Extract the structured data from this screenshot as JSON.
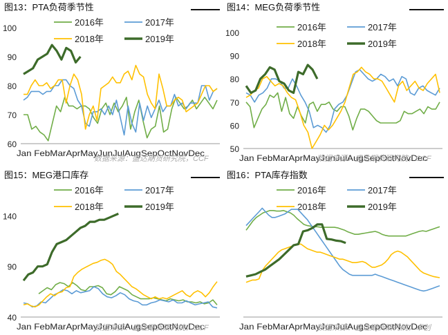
{
  "colors": {
    "s2016": "#70ad47",
    "s2017": "#5b9bd5",
    "s2018": "#ffc000",
    "s2019": "#3d6b2a"
  },
  "charts": [
    {
      "id": "p13",
      "panel_title": "图13：PTA负荷季节性",
      "source": "数据来源：盛达期货研究院，CCF",
      "chart_data": {
        "type": "line",
        "x_ticks": [
          "Jan",
          "Feb",
          "Mar",
          "Apr",
          "May",
          "Jun",
          "Jul",
          "Aug",
          "Sep",
          "Oct",
          "Nov",
          "Dec"
        ],
        "y_ticks": [
          60,
          70,
          80,
          90,
          100
        ],
        "ylim": [
          60,
          100
        ],
        "legend": "top",
        "series": [
          {
            "name": "2016年",
            "key": "s2016",
            "start_week": 1,
            "values": [
              70,
              70,
              65,
              66,
              64,
              63,
              61,
              67,
              73,
              71,
              76,
              73,
              73,
              72,
              73,
              73,
              72,
              69,
              67,
              72,
              74,
              70,
              74,
              71,
              73,
              76,
              65,
              71,
              75,
              68,
              62,
              65,
              66,
              73,
              64,
              65,
              72,
              76,
              74,
              72,
              73,
              75,
              72,
              74,
              76,
              74,
              72,
              75
            ]
          },
          {
            "name": "2017年",
            "key": "s2017",
            "start_week": 1,
            "values": [
              75,
              76,
              78,
              78,
              78,
              77,
              78,
              78,
              80,
              80,
              82,
              82,
              80,
              79,
              75,
              73,
              67,
              66,
              71,
              71,
              72,
              70,
              73,
              70,
              75,
              69,
              63,
              73,
              67,
              64,
              74,
              68,
              73,
              69,
              72,
              75,
              71,
              73,
              73,
              77,
              73,
              74,
              72,
              74,
              74,
              74,
              80,
              80,
              75,
              78,
              79
            ]
          },
          {
            "name": "2018年",
            "key": "s2018",
            "start_week": 1,
            "values": [
              77,
              77,
              80,
              82,
              80,
              80,
              81,
              79,
              80,
              82,
              82,
              74,
              80,
              84,
              82,
              77,
              65,
              70,
              73,
              68,
              79,
              80,
              81,
              83,
              81,
              81,
              84,
              85,
              82,
              87,
              84,
              83,
              77,
              74,
              72,
              84,
              79,
              73,
              73,
              75,
              76,
              75,
              71,
              72,
              73,
              74,
              77,
              80,
              80,
              78,
              79
            ]
          },
          {
            "name": "2019年",
            "key": "s2019",
            "start_week": 1,
            "values": [
              84,
              85,
              86,
              89,
              90,
              91,
              94,
              92,
              89,
              93,
              92,
              88,
              90
            ]
          }
        ]
      }
    },
    {
      "id": "p14",
      "panel_title": "图14：MEG负荷季节性",
      "source": "数据来源：盛达期货研究院，CCF",
      "chart_data": {
        "type": "line",
        "x_ticks": [
          "Jan",
          "Feb",
          "Mar",
          "Apr",
          "May",
          "Jun",
          "Jul",
          "Aug",
          "Sep",
          "Oct",
          "Nov",
          "Dec"
        ],
        "y_ticks": [
          50,
          60,
          70,
          80,
          90,
          100
        ],
        "ylim": [
          50,
          100
        ],
        "legend": "top",
        "series": [
          {
            "name": "2016年",
            "key": "s2016",
            "start_week": 1,
            "values": [
              70,
              68,
              59,
              63,
              67,
              69,
              73,
              72,
              74,
              66,
              72,
              65,
              63,
              68,
              64,
              61,
              69,
              70,
              66,
              69,
              69,
              70,
              67,
              66,
              68,
              68,
              64,
              58,
              63,
              67,
              67,
              66,
              64,
              62,
              61,
              61,
              61,
              61,
              61,
              62,
              66,
              65,
              65,
              66,
              67,
              65,
              68,
              67,
              67,
              70
            ]
          },
          {
            "name": "2017年",
            "key": "s2017",
            "start_week": 1,
            "values": [
              74,
              73,
              70,
              73,
              74,
              76,
              80,
              80,
              79,
              76,
              76,
              80,
              77,
              73,
              70,
              66,
              59,
              60,
              59,
              57,
              60,
              67,
              69,
              70,
              73,
              78,
              83,
              84,
              82,
              80,
              79,
              80,
              82,
              81,
              79,
              80,
              77,
              81,
              80,
              74,
              73,
              76,
              77,
              75,
              74,
              73,
              76
            ]
          },
          {
            "name": "2018年",
            "key": "s2018",
            "start_week": 1,
            "values": [
              72,
              73,
              75,
              76,
              80,
              81,
              79,
              77,
              78,
              77,
              74,
              72,
              71,
              66,
              60,
              57,
              50,
              53,
              56,
              60,
              58,
              60,
              63,
              66,
              70,
              76,
              82,
              83,
              85,
              83,
              82,
              80,
              80,
              79,
              76,
              73,
              70,
              77,
              79,
              75,
              77,
              79,
              76,
              75,
              78,
              80,
              82,
              74
            ]
          },
          {
            "name": "2019年",
            "key": "s2019",
            "start_week": 1,
            "values": [
              77,
              74,
              75,
              80,
              82,
              85,
              84,
              79,
              78,
              75,
              74,
              83,
              82,
              86,
              84,
              80
            ]
          }
        ]
      }
    },
    {
      "id": "p15",
      "panel_title": "图15：MEG港口库存",
      "source": "数据来源：盛达期货研究院，CCF",
      "chart_data": {
        "type": "line",
        "x_ticks": [
          "Jan",
          "Feb",
          "Mar",
          "Apr",
          "May",
          "Jun",
          "Jul",
          "Aug",
          "Sep",
          "Oct",
          "Nov",
          "Dec"
        ],
        "y_ticks": [
          40,
          90,
          140
        ],
        "ylim": [
          40,
          160
        ],
        "legend": "top",
        "series": [
          {
            "name": "2016年",
            "key": "s2016",
            "start_week": 5,
            "values": [
              63,
              66,
              69,
              67,
              72,
              74,
              73,
              70,
              74,
              71,
              67,
              66,
              70,
              70,
              71,
              69,
              63,
              62,
              65,
              70,
              68,
              66,
              62,
              60,
              58,
              58,
              58,
              59,
              58,
              57,
              56,
              58,
              57,
              56,
              57,
              55,
              55,
              54,
              55,
              53,
              54,
              57,
              52
            ]
          },
          {
            "name": "2017年",
            "key": "s2017",
            "start_week": 1,
            "values": [
              54,
              53,
              50,
              51,
              55,
              54,
              58,
              62,
              64,
              67,
              66,
              63,
              66,
              64,
              65,
              66,
              70,
              68,
              63,
              60,
              59,
              61,
              64,
              62,
              58,
              56,
              55,
              52,
              52,
              54,
              55,
              57,
              56,
              55,
              57,
              54,
              54,
              56,
              54,
              52,
              53,
              54,
              55,
              50,
              49
            ]
          },
          {
            "name": "2018年",
            "key": "s2018",
            "start_week": 1,
            "values": [
              52,
              53,
              51,
              50,
              52,
              56,
              60,
              63,
              61,
              64,
              65,
              69,
              70,
              80,
              84,
              87,
              89,
              91,
              93,
              94,
              96,
              97,
              95,
              92,
              85,
              82,
              78,
              74,
              70,
              68,
              65,
              62,
              60,
              58,
              60,
              58,
              59,
              58,
              60,
              62,
              64,
              66,
              62,
              60,
              64,
              66,
              64,
              60,
              64,
              70,
              75
            ]
          },
          {
            "name": "2019年",
            "key": "s2019",
            "start_week": 1,
            "values": [
              76,
              82,
              84,
              90,
              90,
              92,
              104,
              112,
              114,
              116,
              120,
              124,
              128,
              130,
              134,
              134,
              136,
              136,
              138,
              140,
              142
            ]
          }
        ]
      }
    },
    {
      "id": "p16",
      "panel_title": "图16：PTA库存指数",
      "source": "数据来源：盛达期货研究院，卓创",
      "chart_data": {
        "type": "line",
        "x_ticks": [
          "Jan",
          "Feb",
          "Mar",
          "Apr",
          "May",
          "Jun",
          "Jul",
          "Aug",
          "Sep",
          "Oct",
          "Nov",
          "Dec"
        ],
        "y_ticks": [],
        "ylim": [
          0,
          210
        ],
        "legend": "top",
        "series": [
          {
            "name": "2016年",
            "key": "s2016",
            "start_week": 1,
            "values": [
              150,
              158,
              166,
              172,
              176,
              180,
              182,
              184,
              184,
              183,
              183,
              184,
              182,
              180,
              176,
              170,
              165,
              160,
              158,
              157,
              156,
              156,
              155,
              155,
              155,
              155,
              155,
              154,
              152,
              150,
              147,
              145,
              143,
              143,
              144,
              145,
              146,
              147,
              148,
              146,
              143,
              141,
              140,
              140,
              140,
              140,
              140,
              140,
              142,
              144,
              146,
              148,
              149,
              148,
              150,
              152,
              154,
              156
            ]
          },
          {
            "name": "2017年",
            "key": "s2017",
            "start_week": 1,
            "values": [
              158,
              164,
              170,
              176,
              182,
              188,
              182,
              176,
              172,
              172,
              174,
              176,
              178,
              182,
              186,
              186,
              186,
              180,
              174,
              168,
              160,
              152,
              144,
              136,
              128,
              120,
              112,
              104,
              96,
              88,
              82,
              78,
              74,
              72,
              72,
              72,
              72,
              72,
              72,
              72,
              74,
              72,
              70,
              68,
              66,
              64,
              62,
              60,
              58,
              56,
              54,
              52,
              50,
              48,
              46,
              45,
              46,
              48,
              50,
              52,
              54
            ]
          },
          {
            "name": "2018年",
            "key": "s2018",
            "start_week": 1,
            "values": [
              60,
              62,
              64,
              64,
              66,
              80,
              88,
              94,
              100,
              106,
              112,
              116,
              118,
              120,
              122,
              124,
              126,
              126,
              122,
              118,
              116,
              114,
              112,
              112,
              110,
              108,
              106,
              104,
              102,
              100,
              100,
              98,
              96,
              94,
              94,
              95,
              96,
              94,
              90,
              86,
              86,
              88,
              90,
              94,
              100,
              108,
              112,
              114,
              112,
              108,
              104,
              98,
              92,
              86,
              80,
              76,
              74,
              72,
              70,
              69,
              68
            ]
          },
          {
            "name": "2019年",
            "key": "s2019",
            "start_week": 1,
            "values": [
              70,
              72,
              74,
              78,
              82,
              88,
              94,
              100,
              108,
              116,
              124,
              126,
              148,
              150,
              154,
              160,
              160,
              135,
              134,
              132,
              131,
              128
            ]
          }
        ]
      }
    }
  ]
}
